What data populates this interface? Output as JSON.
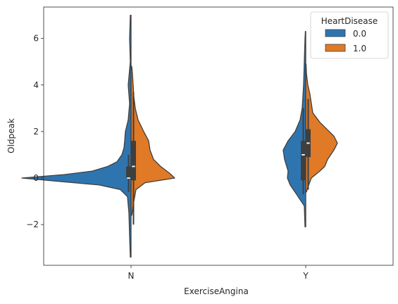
{
  "chart_data": {
    "type": "violin",
    "split": true,
    "xlabel": "ExerciseAngina",
    "ylabel": "Oldpeak",
    "categories": [
      "N",
      "Y"
    ],
    "ylim": [
      -3.75,
      7.35
    ],
    "yticks": [
      -2,
      0,
      2,
      4,
      6
    ],
    "ytick_labels": [
      "−2",
      "0",
      "2",
      "4",
      "6"
    ],
    "legend": {
      "title": "HeartDisease",
      "placement": "upper right",
      "entries": [
        {
          "label": "0.0",
          "color": "#2e75b0"
        },
        {
          "label": "1.0",
          "color": "#e07a26"
        }
      ]
    },
    "series": [
      {
        "name": "0.0",
        "color": "#2e75b0",
        "side": "left",
        "violins": [
          {
            "category": "N",
            "range": [
              -3.4,
              7.0
            ],
            "quartiles": [
              0.0,
              0.0,
              0.5
            ],
            "whiskers": [
              -0.6,
              1.0
            ],
            "profile": [
              [
                -3.4,
                0.01
              ],
              [
                -2.5,
                0.02
              ],
              [
                -1.5,
                0.03
              ],
              [
                -0.8,
                0.05
              ],
              [
                -0.5,
                0.15
              ],
              [
                -0.3,
                0.45
              ],
              [
                -0.15,
                1.0
              ],
              [
                0.0,
                1.55
              ],
              [
                0.15,
                0.95
              ],
              [
                0.3,
                0.55
              ],
              [
                0.5,
                0.33
              ],
              [
                0.7,
                0.2
              ],
              [
                1.0,
                0.13
              ],
              [
                1.3,
                0.1
              ],
              [
                1.6,
                0.09
              ],
              [
                2.0,
                0.08
              ],
              [
                2.5,
                0.04
              ],
              [
                3.2,
                0.02
              ],
              [
                4.0,
                0.04
              ],
              [
                5.0,
                0.01
              ],
              [
                6.0,
                0.02
              ],
              [
                7.0,
                0.01
              ]
            ]
          },
          {
            "category": "Y",
            "range": [
              -2.1,
              6.3
            ],
            "quartiles": [
              -0.1,
              1.0,
              1.6
            ],
            "whiskers": [
              -0.7,
              3.0
            ],
            "profile": [
              [
                -2.1,
                0.01
              ],
              [
                -1.2,
                0.02
              ],
              [
                -0.7,
                0.13
              ],
              [
                -0.3,
                0.22
              ],
              [
                0.0,
                0.26
              ],
              [
                0.3,
                0.25
              ],
              [
                0.5,
                0.27
              ],
              [
                0.8,
                0.3
              ],
              [
                1.2,
                0.32
              ],
              [
                1.6,
                0.25
              ],
              [
                2.0,
                0.15
              ],
              [
                2.5,
                0.08
              ],
              [
                3.0,
                0.05
              ],
              [
                3.5,
                0.04
              ],
              [
                4.0,
                0.03
              ],
              [
                5.0,
                0.02
              ],
              [
                6.0,
                0.01
              ],
              [
                6.3,
                0.005
              ]
            ]
          }
        ]
      },
      {
        "name": "1.0",
        "color": "#e07a26",
        "side": "right",
        "violins": [
          {
            "category": "N",
            "range": [
              -1.6,
              4.8
            ],
            "quartiles": [
              -0.1,
              0.5,
              1.6
            ],
            "whiskers": [
              -2.0,
              3.7
            ],
            "profile": [
              [
                -1.6,
                0.01
              ],
              [
                -1.0,
                0.04
              ],
              [
                -0.5,
                0.07
              ],
              [
                -0.2,
                0.2
              ],
              [
                0.0,
                0.62
              ],
              [
                0.2,
                0.55
              ],
              [
                0.5,
                0.42
              ],
              [
                0.8,
                0.32
              ],
              [
                1.2,
                0.27
              ],
              [
                1.6,
                0.25
              ],
              [
                2.0,
                0.18
              ],
              [
                2.5,
                0.1
              ],
              [
                3.0,
                0.06
              ],
              [
                3.5,
                0.04
              ],
              [
                4.0,
                0.03
              ],
              [
                4.5,
                0.02
              ],
              [
                4.8,
                0.01
              ]
            ]
          },
          {
            "category": "Y",
            "range": [
              -0.6,
              4.9
            ],
            "quartiles": [
              0.9,
              1.5,
              2.1
            ],
            "whiskers": [
              -0.5,
              3.4
            ],
            "profile": [
              [
                -0.6,
                0.01
              ],
              [
                -0.4,
                0.03
              ],
              [
                0.0,
                0.08
              ],
              [
                0.3,
                0.2
              ],
              [
                0.5,
                0.27
              ],
              [
                0.8,
                0.31
              ],
              [
                1.2,
                0.4
              ],
              [
                1.5,
                0.45
              ],
              [
                1.8,
                0.4
              ],
              [
                2.1,
                0.3
              ],
              [
                2.4,
                0.2
              ],
              [
                2.8,
                0.1
              ],
              [
                3.2,
                0.08
              ],
              [
                3.6,
                0.06
              ],
              [
                4.0,
                0.03
              ],
              [
                4.5,
                0.01
              ],
              [
                4.9,
                0.005
              ]
            ]
          }
        ]
      }
    ]
  }
}
